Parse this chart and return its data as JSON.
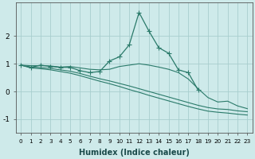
{
  "x": [
    0,
    1,
    2,
    3,
    4,
    5,
    6,
    7,
    8,
    9,
    10,
    11,
    12,
    13,
    14,
    15,
    16,
    17,
    18,
    19,
    20,
    21,
    22,
    23
  ],
  "line_jagged": [
    0.95,
    0.87,
    0.95,
    0.9,
    0.87,
    0.87,
    0.75,
    0.68,
    0.72,
    1.1,
    1.25,
    1.68,
    2.85,
    2.18,
    1.58,
    1.38,
    0.78,
    0.68,
    0.05,
    null,
    null,
    null,
    null,
    null
  ],
  "line_upper": [
    0.95,
    0.93,
    0.93,
    0.92,
    0.88,
    0.9,
    0.85,
    0.8,
    0.78,
    0.8,
    0.9,
    0.95,
    1.0,
    0.95,
    0.88,
    0.8,
    0.68,
    0.45,
    0.1,
    -0.22,
    -0.38,
    -0.35,
    -0.52,
    -0.62
  ],
  "line_mid1": [
    0.95,
    0.88,
    0.86,
    0.83,
    0.78,
    0.73,
    0.65,
    0.55,
    0.46,
    0.38,
    0.29,
    0.2,
    0.1,
    0.0,
    -0.1,
    -0.2,
    -0.3,
    -0.4,
    -0.5,
    -0.58,
    -0.63,
    -0.65,
    -0.7,
    -0.73
  ],
  "line_mid2": [
    0.95,
    0.85,
    0.82,
    0.78,
    0.72,
    0.66,
    0.57,
    0.47,
    0.37,
    0.28,
    0.18,
    0.07,
    -0.03,
    -0.14,
    -0.24,
    -0.34,
    -0.44,
    -0.54,
    -0.63,
    -0.71,
    -0.75,
    -0.78,
    -0.82,
    -0.85
  ],
  "line_color": "#2a7a6a",
  "background_color": "#ceeaea",
  "grid_color": "#a8cece",
  "xlabel": "Humidex (Indice chaleur)",
  "ylim": [
    -1.5,
    3.2
  ],
  "xlim": [
    -0.5,
    23.5
  ],
  "yticks": [
    -1,
    0,
    1,
    2
  ],
  "xticks": [
    0,
    1,
    2,
    3,
    4,
    5,
    6,
    7,
    8,
    9,
    10,
    11,
    12,
    13,
    14,
    15,
    16,
    17,
    18,
    19,
    20,
    21,
    22,
    23
  ]
}
